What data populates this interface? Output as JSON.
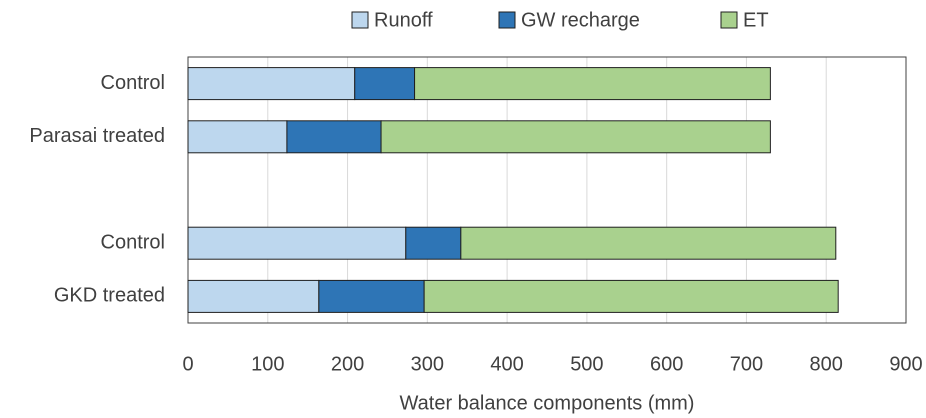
{
  "chart_data": {
    "type": "stacked-bar-horizontal",
    "x_label": "Water balance components (mm)",
    "categories": [
      "Control",
      "Parasai treated",
      null,
      "Control",
      "GKD treated"
    ],
    "series": [
      {
        "name": "Runoff",
        "color": "#bdd7ee",
        "values": [
          209,
          124,
          null,
          273,
          164
        ]
      },
      {
        "name": "GW recharge",
        "color": "#2e75b6",
        "values": [
          75,
          118,
          null,
          69,
          132
        ]
      },
      {
        "name": "ET",
        "color": "#a9d18e",
        "values": [
          446,
          488,
          null,
          470,
          519
        ]
      }
    ],
    "xlim": [
      0,
      900
    ],
    "xticks": [
      0,
      100,
      200,
      300,
      400,
      500,
      600,
      700,
      800,
      900
    ],
    "grid": true,
    "legend": "top"
  }
}
